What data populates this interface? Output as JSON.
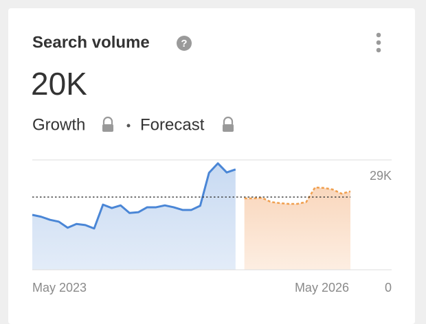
{
  "card": {
    "title": "Search volume",
    "help": "?",
    "value": "20K",
    "growth": "Growth",
    "forecast": "Forecast"
  },
  "chart_data": {
    "type": "line",
    "categories": [
      "May 2023",
      null,
      null,
      null,
      null,
      null,
      null,
      null,
      null,
      null,
      null,
      null,
      null,
      null,
      null,
      null,
      null,
      null,
      null,
      null,
      null,
      null,
      null,
      null,
      null,
      null,
      null,
      null,
      null,
      null,
      null,
      null,
      null,
      null,
      null,
      null,
      "May 2026"
    ],
    "series": [
      {
        "color": "#4a86d6",
        "fill": "#d3e2f5",
        "style": "solid",
        "values": [
          14500,
          14000,
          13200,
          12700,
          11100,
          12100,
          11800,
          10900,
          17200,
          16300,
          17000,
          15000,
          15200,
          16500,
          16500,
          17000,
          16500,
          15800,
          15800,
          16900,
          25600,
          28100,
          25700,
          26500,
          null,
          null,
          null,
          null,
          null,
          null,
          null,
          null,
          null,
          null,
          null,
          null,
          null
        ]
      },
      {
        "color": "#f0a050",
        "fill": "#fbe2cf",
        "style": "dotted",
        "values": [
          null,
          null,
          null,
          null,
          null,
          null,
          null,
          null,
          null,
          null,
          null,
          null,
          null,
          null,
          null,
          null,
          null,
          null,
          null,
          null,
          null,
          null,
          null,
          null,
          18850,
          18850,
          19000,
          17900,
          17600,
          17400,
          17400,
          17900,
          21750,
          21600,
          21200,
          20100,
          20700
        ]
      }
    ],
    "reference_line": 19200,
    "ylim": [
      0,
      29000
    ],
    "yticks": [
      0,
      {
        "value": 29000,
        "label": "29K"
      }
    ],
    "grid": true
  }
}
